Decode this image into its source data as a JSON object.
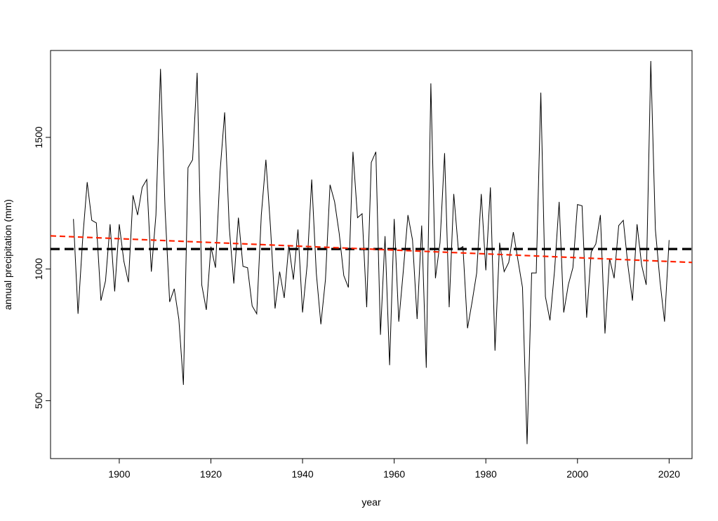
{
  "chart_data": {
    "type": "line",
    "title": "",
    "xlabel": "year",
    "ylabel": "annual precipitation (mm)",
    "xlim": [
      1885,
      2025
    ],
    "ylim": [
      280,
      1830
    ],
    "xticks": [
      1900,
      1920,
      1940,
      1960,
      1980,
      2000,
      2020
    ],
    "yticks": [
      500,
      1000,
      1500
    ],
    "grid": false,
    "legend": "none",
    "series": [
      {
        "style": "solid",
        "color": "#000000",
        "x": [
          1890,
          1891,
          1892,
          1893,
          1894,
          1895,
          1896,
          1897,
          1898,
          1899,
          1900,
          1901,
          1902,
          1903,
          1904,
          1905,
          1906,
          1907,
          1908,
          1909,
          1910,
          1911,
          1912,
          1913,
          1914,
          1915,
          1916,
          1917,
          1918,
          1919,
          1920,
          1921,
          1922,
          1923,
          1924,
          1925,
          1926,
          1927,
          1928,
          1929,
          1930,
          1931,
          1932,
          1933,
          1934,
          1935,
          1936,
          1937,
          1938,
          1939,
          1940,
          1941,
          1942,
          1943,
          1944,
          1945,
          1946,
          1947,
          1948,
          1949,
          1950,
          1951,
          1952,
          1953,
          1954,
          1955,
          1956,
          1957,
          1958,
          1959,
          1960,
          1961,
          1962,
          1963,
          1964,
          1965,
          1966,
          1967,
          1968,
          1969,
          1970,
          1971,
          1972,
          1973,
          1974,
          1975,
          1976,
          1977,
          1978,
          1979,
          1980,
          1981,
          1982,
          1983,
          1984,
          1985,
          1986,
          1987,
          1988,
          1989,
          1990,
          1991,
          1992,
          1993,
          1994,
          1995,
          1996,
          1997,
          1998,
          1999,
          2000,
          2001,
          2002,
          2003,
          2004,
          2005,
          2006,
          2007,
          2008,
          2009,
          2010,
          2011,
          2012,
          2013,
          2014,
          2015,
          2016,
          2017,
          2018,
          2019,
          2020
        ],
        "values": [
          1190,
          830,
          1110,
          1330,
          1185,
          1175,
          880,
          955,
          1170,
          915,
          1170,
          1030,
          950,
          1280,
          1205,
          1310,
          1340,
          990,
          1205,
          1760,
          1225,
          875,
          925,
          810,
          560,
          1385,
          1415,
          1745,
          940,
          845,
          1085,
          1005,
          1370,
          1595,
          1160,
          945,
          1195,
          1010,
          1005,
          860,
          830,
          1205,
          1415,
          1160,
          850,
          990,
          890,
          1090,
          960,
          1150,
          835,
          1015,
          1340,
          985,
          790,
          960,
          1320,
          1255,
          1135,
          975,
          930,
          1445,
          1195,
          1210,
          855,
          1405,
          1445,
          750,
          1125,
          635,
          1190,
          800,
          995,
          1205,
          1110,
          810,
          1165,
          625,
          1705,
          965,
          1100,
          1440,
          855,
          1285,
          1075,
          1085,
          775,
          875,
          985,
          1285,
          995,
          1310,
          690,
          1100,
          990,
          1025,
          1140,
          1035,
          930,
          335,
          985,
          985,
          1670,
          895,
          805,
          995,
          1255,
          835,
          940,
          1005,
          1245,
          1240,
          815,
          1065,
          1095,
          1205,
          755,
          1040,
          965,
          1165,
          1185,
          1015,
          880,
          1170,
          1015,
          940,
          1790,
          1150,
          955,
          800,
          1110
        ]
      },
      {
        "style": "dashed",
        "color": "#000000",
        "x": [
          1885,
          2025
        ],
        "values": [
          1076,
          1076
        ]
      },
      {
        "style": "dashed",
        "color": "#ff2200",
        "x": [
          1885,
          2025
        ],
        "values": [
          1126,
          1025
        ]
      }
    ]
  }
}
